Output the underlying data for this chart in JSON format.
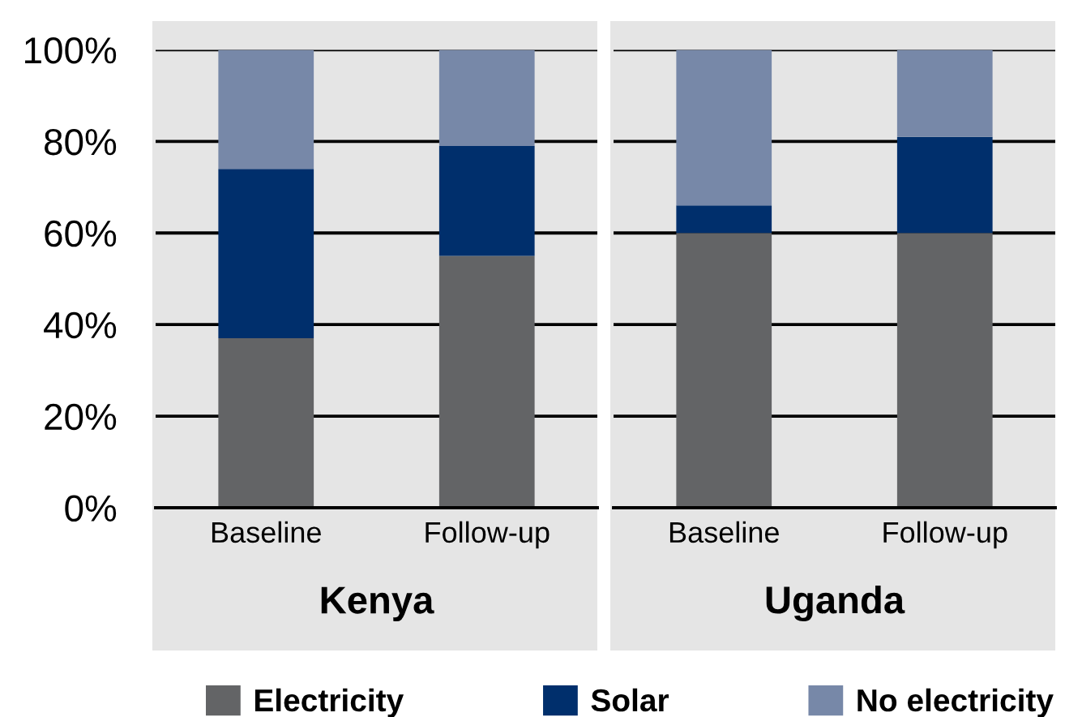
{
  "chart_data": [
    {
      "type": "bar",
      "title": "Kenya",
      "categories": [
        "Baseline",
        "Follow-up"
      ],
      "stacked": true,
      "series": [
        {
          "name": "Electricity",
          "color": "#636466",
          "values": [
            37,
            55
          ]
        },
        {
          "name": "Solar",
          "color": "#002f6c",
          "values": [
            37,
            24
          ]
        },
        {
          "name": "No electricity",
          "color": "#7788a8",
          "values": [
            26,
            21
          ]
        }
      ],
      "ylim": [
        0,
        100
      ],
      "yticks": [
        {
          "value": 0,
          "label": "0%"
        },
        {
          "value": 20,
          "label": "20%"
        },
        {
          "value": 40,
          "label": "40%"
        },
        {
          "value": 60,
          "label": "60%"
        },
        {
          "value": 80,
          "label": "80%"
        },
        {
          "value": 100,
          "label": "100%"
        }
      ],
      "grid": "y",
      "legend": "bottom"
    },
    {
      "type": "bar",
      "title": "Uganda",
      "categories": [
        "Baseline",
        "Follow-up"
      ],
      "stacked": true,
      "series": [
        {
          "color": "#636466",
          "values": [
            60,
            60
          ]
        },
        {
          "color": "#002f6c",
          "values": [
            6,
            21
          ]
        },
        {
          "color": "#7788a8",
          "values": [
            34,
            19
          ]
        }
      ],
      "ylim": [
        0,
        100
      ],
      "yticks": [
        0,
        20,
        40,
        60,
        80,
        100
      ],
      "grid": "y",
      "tick_labels": "x"
    }
  ]
}
